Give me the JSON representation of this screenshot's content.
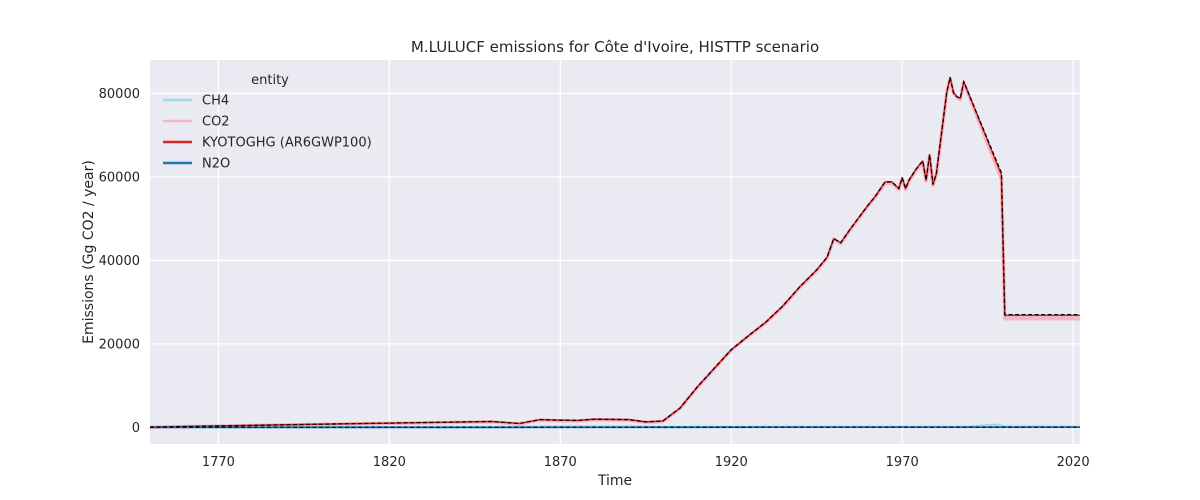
{
  "chart_data": {
    "type": "line",
    "title": "M.LULUCF emissions for Côte d'Ivoire, HISTTP scenario",
    "xlabel": "Time",
    "ylabel": "Emissions (Gg CO2 / year)",
    "xlim": [
      1750,
      2022
    ],
    "ylim": [
      -4000,
      88000
    ],
    "x_ticks": [
      1770,
      1820,
      1870,
      1920,
      1970,
      2020
    ],
    "y_ticks": [
      0,
      20000,
      40000,
      60000,
      80000
    ],
    "grid": true,
    "legend": {
      "title": "entity",
      "placement": "top-left",
      "entries": [
        "CH4",
        "CO2",
        "KYOTOGHG (AR6GWP100)",
        "N2O"
      ]
    },
    "series": [
      {
        "name": "CH4",
        "color": "#9ddbe8",
        "x": [
          1750,
          1800,
          1850,
          1870,
          1890,
          1900,
          1950,
          1990,
          1995,
          1998,
          2000,
          2022
        ],
        "y": [
          20,
          30,
          60,
          180,
          180,
          80,
          120,
          150,
          500,
          600,
          200,
          150
        ]
      },
      {
        "name": "CO2",
        "color": "#f4b6c7",
        "x": [
          1750,
          1800,
          1850,
          1858,
          1864,
          1868,
          1875,
          1880,
          1890,
          1895,
          1900,
          1905,
          1910,
          1920,
          1925,
          1930,
          1935,
          1940,
          1945,
          1948,
          1950,
          1952,
          1955,
          1960,
          1962,
          1965,
          1967,
          1969,
          1970,
          1971,
          1972,
          1974,
          1976,
          1977,
          1978,
          1979,
          1980,
          1983,
          1984,
          1985,
          1986,
          1987,
          1988,
          1989,
          1999,
          2000,
          2022
        ],
        "y": [
          0,
          700,
          1300,
          800,
          1700,
          1600,
          1500,
          1800,
          1700,
          1200,
          1400,
          4500,
          9500,
          18500,
          21800,
          25000,
          28800,
          33500,
          37500,
          40500,
          45000,
          44000,
          47500,
          53000,
          55000,
          58500,
          58500,
          57000,
          59500,
          57000,
          59000,
          61500,
          63500,
          59000,
          65000,
          58000,
          60500,
          80000,
          83500,
          80000,
          79000,
          78500,
          82500,
          80500,
          59500,
          26000,
          26000
        ]
      },
      {
        "name": "KYOTOGHG (AR6GWP100)",
        "color": "#d62728",
        "x": [
          1750,
          1800,
          1850,
          1858,
          1864,
          1868,
          1875,
          1880,
          1890,
          1895,
          1900,
          1905,
          1910,
          1920,
          1925,
          1930,
          1935,
          1940,
          1945,
          1948,
          1950,
          1952,
          1955,
          1960,
          1962,
          1965,
          1967,
          1969,
          1970,
          1971,
          1972,
          1974,
          1976,
          1977,
          1978,
          1979,
          1980,
          1983,
          1984,
          1985,
          1986,
          1987,
          1988,
          1989,
          1999,
          2000,
          2022
        ],
        "y": [
          50,
          750,
          1400,
          900,
          1850,
          1750,
          1650,
          1950,
          1850,
          1300,
          1500,
          4600,
          9600,
          18600,
          21900,
          25100,
          29000,
          33600,
          37700,
          40700,
          45200,
          44200,
          47700,
          53200,
          55200,
          58800,
          58800,
          57200,
          59800,
          57200,
          59200,
          61800,
          63800,
          59200,
          65300,
          58200,
          60800,
          80200,
          83800,
          80200,
          79200,
          78800,
          82800,
          80800,
          60500,
          26800,
          26800
        ]
      },
      {
        "name": "N2O",
        "color": "#1f77b4",
        "x": [
          1750,
          1850,
          1900,
          1950,
          1990,
          2000,
          2022
        ],
        "y": [
          0,
          10,
          20,
          40,
          60,
          50,
          50
        ]
      }
    ],
    "reference_line": {
      "style": "dashed",
      "color": "#000000",
      "x": [
        1750,
        1800,
        1850,
        1858,
        1864,
        1868,
        1875,
        1880,
        1890,
        1895,
        1900,
        1905,
        1910,
        1920,
        1925,
        1930,
        1935,
        1940,
        1945,
        1948,
        1950,
        1952,
        1955,
        1960,
        1962,
        1965,
        1967,
        1969,
        1970,
        1971,
        1972,
        1974,
        1976,
        1977,
        1978,
        1979,
        1980,
        1983,
        1984,
        1985,
        1986,
        1987,
        1988,
        1989,
        1999,
        2000,
        2022
      ],
      "y": [
        50,
        750,
        1400,
        900,
        1850,
        1750,
        1650,
        1950,
        1850,
        1300,
        1500,
        4600,
        9600,
        18600,
        21900,
        25100,
        29000,
        33600,
        37700,
        40700,
        45200,
        44200,
        47700,
        53200,
        55200,
        58800,
        58800,
        57200,
        59800,
        57200,
        59200,
        61800,
        63800,
        59200,
        65300,
        58200,
        60800,
        80200,
        83800,
        80200,
        79200,
        78800,
        82800,
        80800,
        61000,
        27000,
        27000
      ]
    }
  }
}
